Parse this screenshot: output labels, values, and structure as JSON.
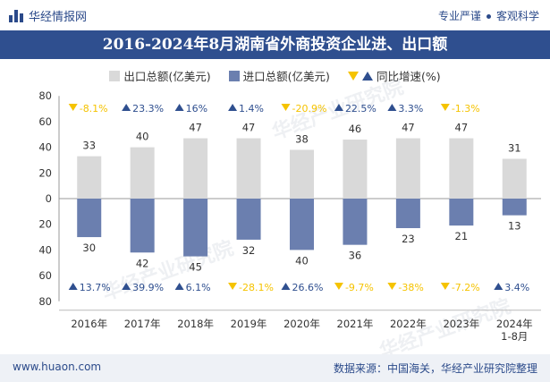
{
  "header": {
    "brand": "华经情报网",
    "tagline_left": "专业严谨",
    "tagline_right": "客观科学"
  },
  "chart_data": {
    "type": "bar",
    "title": "2016-2024年8月湖南省外商投资企业进、出口额",
    "categories": [
      "2016年",
      "2017年",
      "2018年",
      "2019年",
      "2020年",
      "2021年",
      "2022年",
      "2023年",
      "2024年\n1-8月"
    ],
    "series": [
      {
        "name": "出口总额(亿美元)",
        "color": "#d9d9d9",
        "values": [
          33,
          40,
          47,
          47,
          38,
          46,
          47,
          47,
          31
        ],
        "yoy": [
          "-8.1%",
          "23.3%",
          "16%",
          "1.4%",
          "-20.9%",
          "22.5%",
          "3.3%",
          "-1.3%",
          null
        ]
      },
      {
        "name": "进口总额(亿美元)",
        "color": "#6b7faf",
        "values": [
          30,
          42,
          45,
          32,
          40,
          36,
          23,
          21,
          13
        ],
        "yoy": [
          "13.7%",
          "39.9%",
          "6.1%",
          "-28.1%",
          "26.6%",
          "-9.7%",
          "-38%",
          "-7.2%",
          "3.4%"
        ]
      }
    ],
    "yoy_legend": "同比增速(%)",
    "y_ticks": [
      "80",
      "60",
      "40",
      "20",
      "0",
      "20",
      "40",
      "60",
      "80"
    ],
    "ylim": [
      -80,
      80
    ],
    "colors": {
      "up": "#2f4f8f",
      "down": "#f5c300"
    }
  },
  "footer": {
    "url": "www.huaon.com",
    "source": "数据来源：中国海关，华经产业研究院整理"
  },
  "watermark": "华经产业研究院"
}
